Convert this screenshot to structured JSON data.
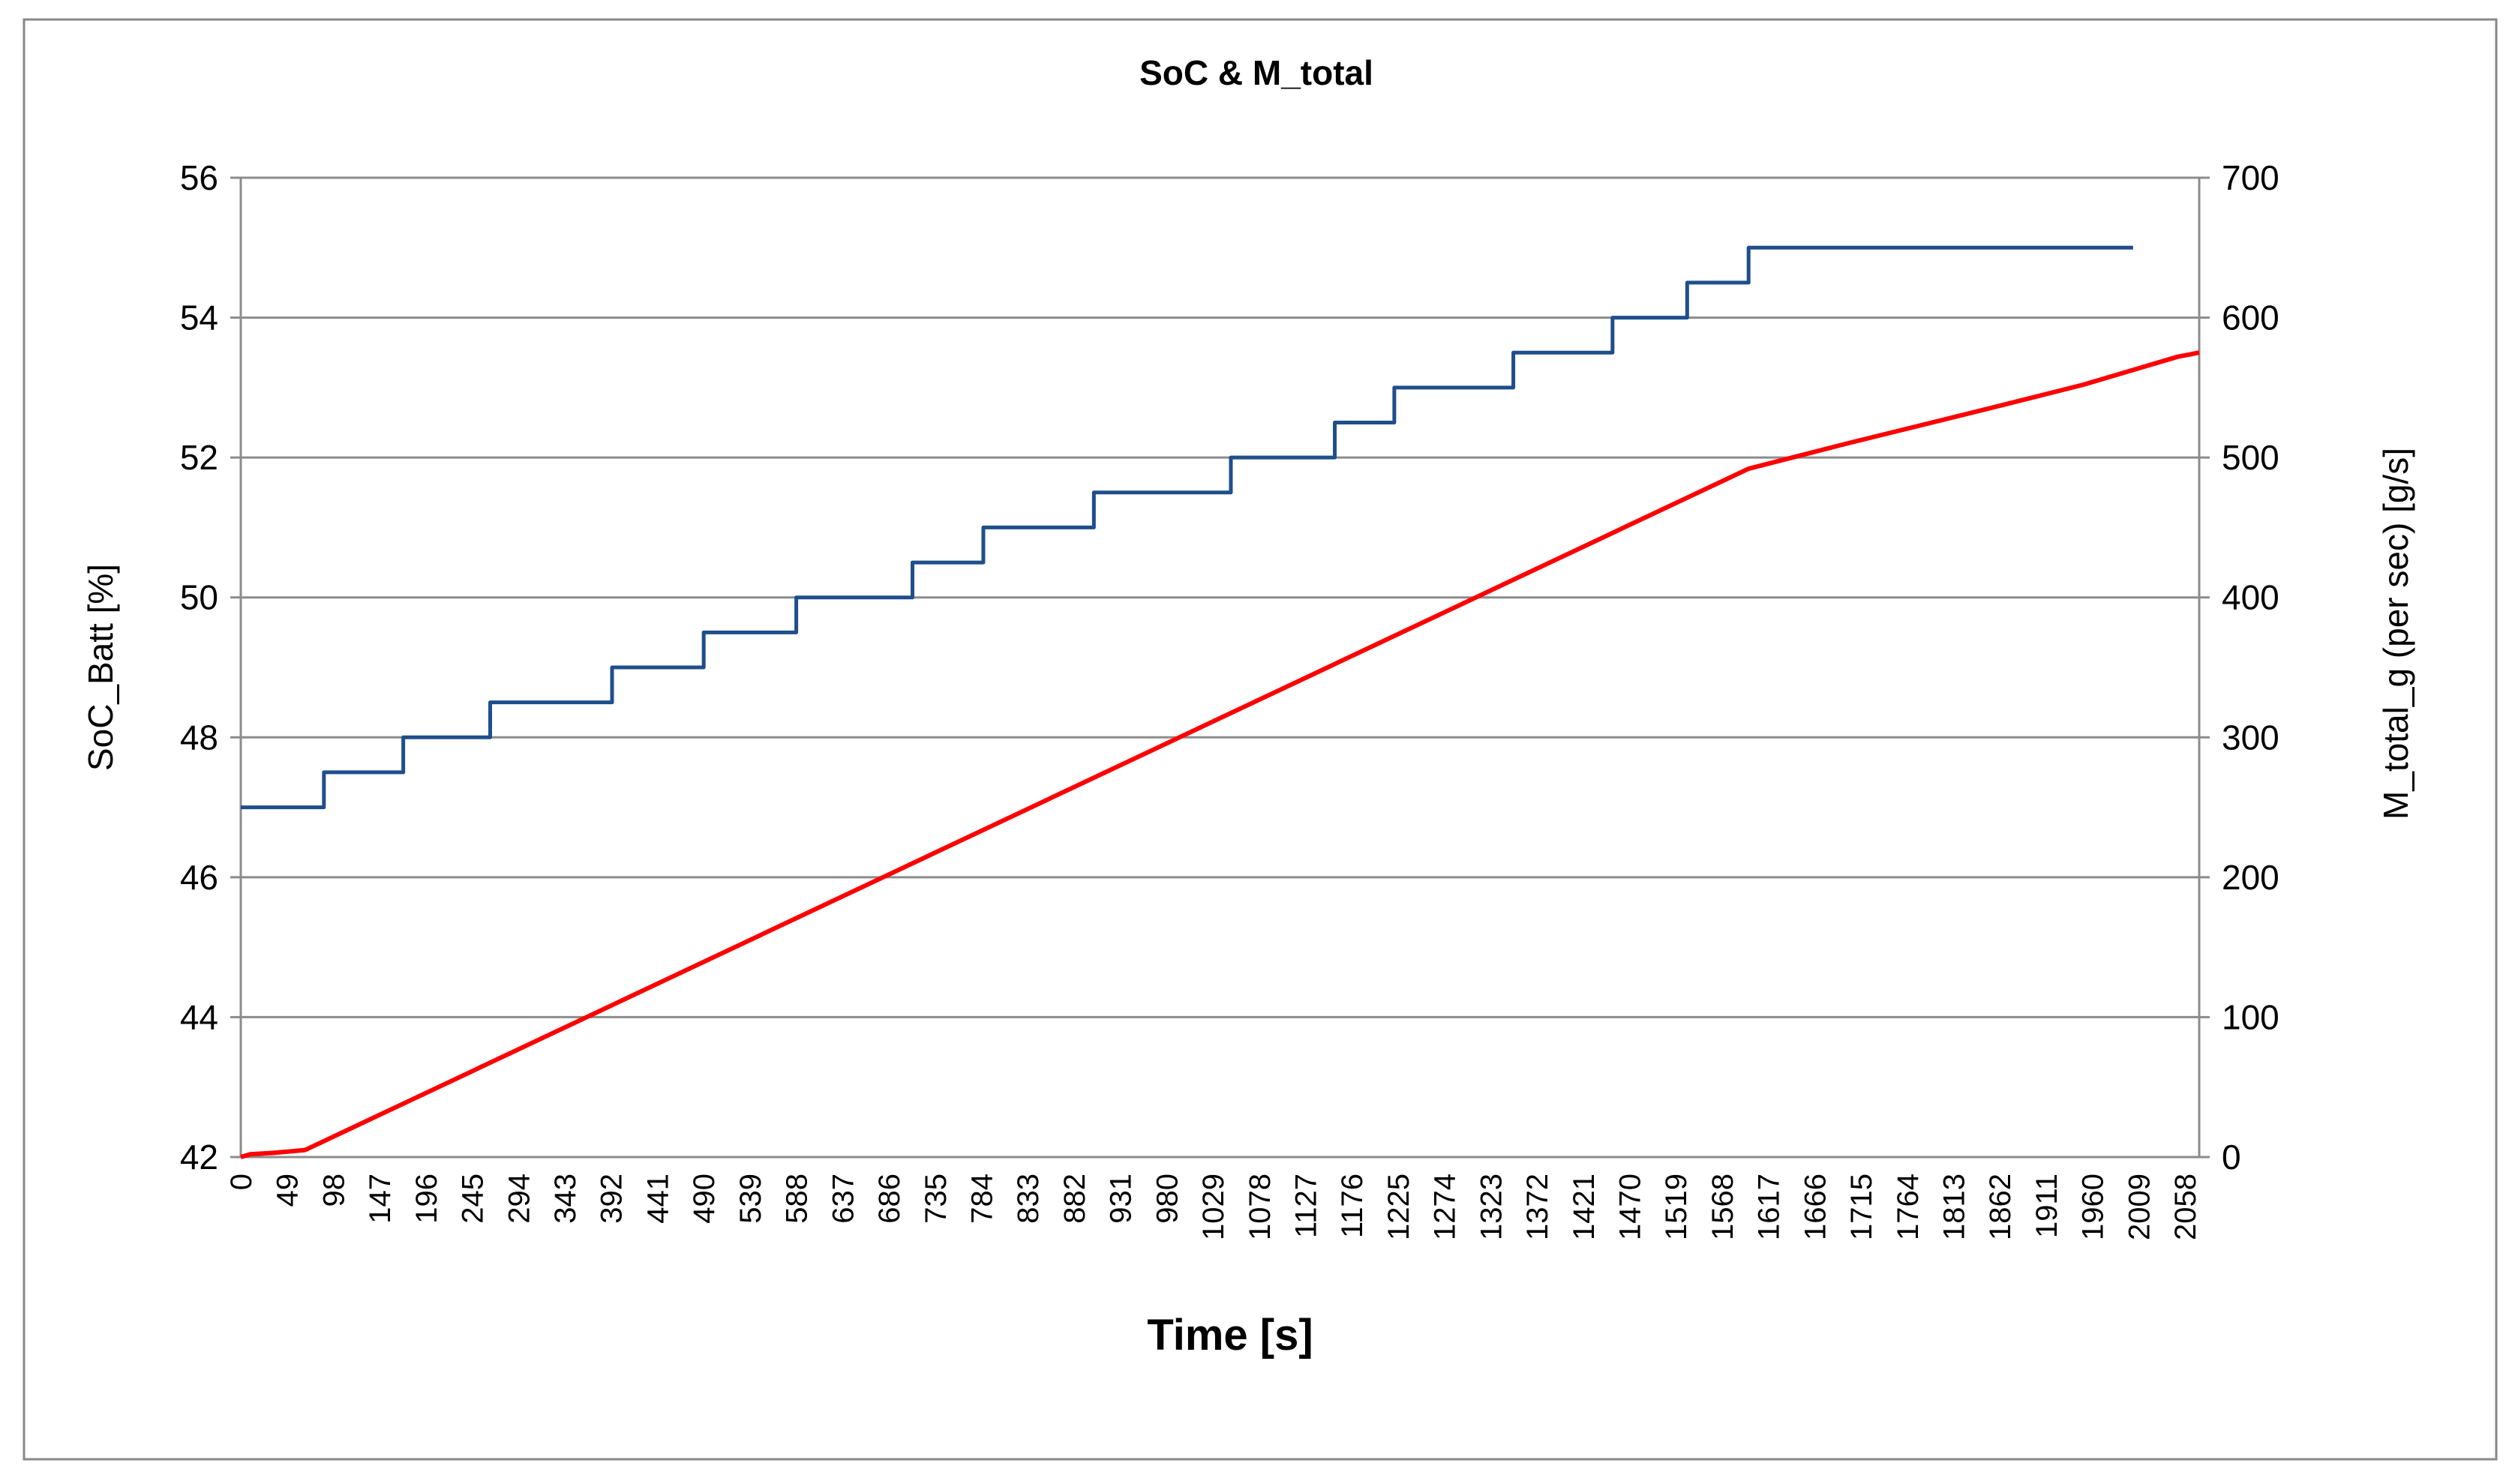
{
  "chart_data": {
    "type": "line",
    "title": "SoC & M_total",
    "xlabel": "Time [s]",
    "ylabel_left": "SoC_Batt [%]",
    "ylabel_right": "M_total_g (per sec) [g/s]",
    "xlim": [
      0,
      2073
    ],
    "ylim_left": [
      42,
      56
    ],
    "ylim_right": [
      0,
      700
    ],
    "yticks_left": [
      42,
      44,
      46,
      48,
      50,
      52,
      54,
      56
    ],
    "yticks_right": [
      0,
      100,
      200,
      300,
      400,
      500,
      600,
      700
    ],
    "xticks": [
      0,
      49,
      98,
      147,
      196,
      245,
      294,
      343,
      392,
      441,
      490,
      539,
      588,
      637,
      686,
      735,
      784,
      833,
      882,
      931,
      980,
      1029,
      1078,
      1127,
      1176,
      1225,
      1274,
      1323,
      1372,
      1421,
      1470,
      1519,
      1568,
      1617,
      1666,
      1715,
      1764,
      1813,
      1862,
      1911,
      1960,
      2009,
      2058
    ],
    "grid": true,
    "legend": "none",
    "series": [
      {
        "axis": "left",
        "color": "#1f4e8c",
        "style": "step",
        "x": [
          0,
          88,
          172,
          264,
          393,
          490,
          588,
          711,
          786,
          903,
          1048,
          1158,
          1221,
          1347,
          1452,
          1531,
          1596,
          2003
        ],
        "y": [
          47,
          47.5,
          48,
          48.5,
          49,
          49.5,
          50,
          50.5,
          51,
          51.5,
          52,
          52.5,
          53,
          53.5,
          54,
          54.5,
          55,
          55
        ]
      },
      {
        "axis": "right",
        "color": "#ff0000",
        "style": "line",
        "x": [
          0,
          10,
          35,
          68,
          1596,
          1700,
          1850,
          1950,
          2050,
          2073
        ],
        "y": [
          0,
          2,
          3,
          5,
          492,
          510,
          535,
          552,
          572,
          575
        ]
      }
    ]
  }
}
